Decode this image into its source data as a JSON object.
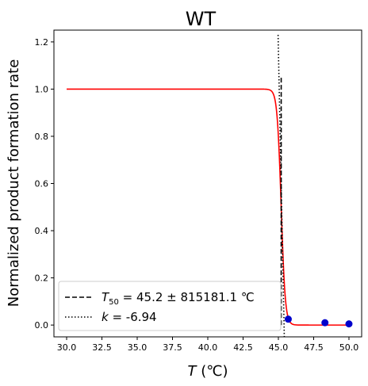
{
  "chart_data": {
    "type": "line",
    "title": "WT",
    "xlabel": {
      "var": "T",
      "unit": " (℃)"
    },
    "ylabel": "Normalized product formation rate",
    "xlim": [
      29.1,
      50.9
    ],
    "ylim": [
      -0.05,
      1.25
    ],
    "xticks": [
      "30.0",
      "32.5",
      "35.0",
      "37.5",
      "40.0",
      "42.5",
      "45.0",
      "47.5",
      "50.0"
    ],
    "xtick_values": [
      30.0,
      32.5,
      35.0,
      37.5,
      40.0,
      42.5,
      45.0,
      47.5,
      50.0
    ],
    "yticks": [
      "0.0",
      "0.2",
      "0.4",
      "0.6",
      "0.8",
      "1.0",
      "1.2"
    ],
    "ytick_values": [
      0.0,
      0.2,
      0.4,
      0.6,
      0.8,
      1.0,
      1.2
    ],
    "grid": false,
    "legend_position": "lower-left",
    "fit_curve": {
      "color": "#ff0000",
      "x_range": [
        30.0,
        50.0
      ],
      "midpoint": 45.2,
      "k": -6.94
    },
    "data_points": {
      "color": "#0000cc",
      "x": [
        45.7,
        48.3,
        50.0
      ],
      "y": [
        0.025,
        0.01,
        0.005
      ]
    },
    "t50_line": {
      "x": 45.2,
      "y_range": [
        0.0,
        1.05
      ],
      "style": "dashed",
      "color": "#000000"
    },
    "k_line": {
      "x_range": [
        44.98,
        45.42
      ],
      "y_range": [
        1.23,
        -0.05
      ],
      "style": "dotted",
      "color": "#000000"
    },
    "legend": [
      {
        "style": "dashed",
        "sym": "T",
        "sub": "50",
        "text": " = 45.2 ± 815181.1 ℃"
      },
      {
        "style": "dotted",
        "sym": "k",
        "text": " = -6.94"
      }
    ]
  }
}
